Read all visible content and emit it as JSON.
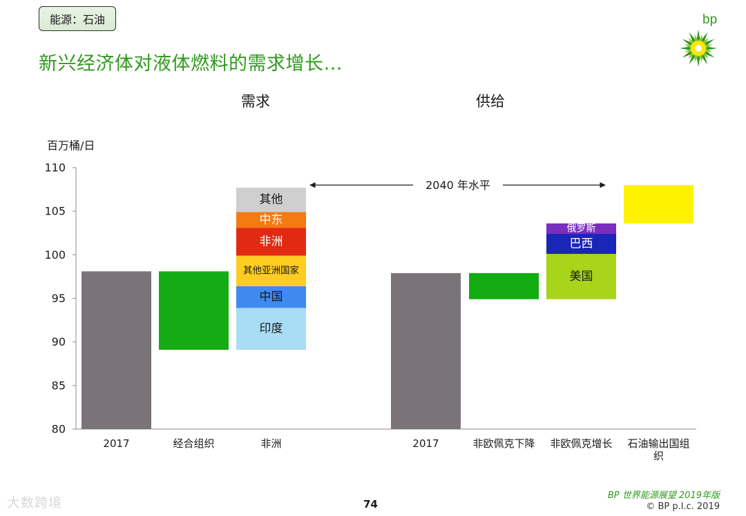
{
  "tag_label": "能源：石油",
  "slide_title": "新兴经济体对液体燃料的需求增长…",
  "logo": {
    "text": "bp",
    "icon": "bp-helios-logo-icon"
  },
  "footer": {
    "brand": "BP 世界能源展望 2019年版",
    "copyright": "© BP p.l.c. 2019",
    "page_number": "74",
    "watermark": "大数跨境"
  },
  "chart_data": {
    "type": "bar",
    "subtype": "waterfall",
    "panel_titles": [
      "需求",
      "供给"
    ],
    "ylabel": "百万桶/日",
    "ylim": [
      80,
      110
    ],
    "yticks": [
      80,
      85,
      90,
      95,
      100,
      105,
      110
    ],
    "annotation": "2040 年水平",
    "colors": {
      "base": "#7a7478",
      "decline": "#13ad13",
      "yellow": "#fff200",
      "russia": "#7a2fbf",
      "brazil": "#1a26b8",
      "usa": "#a8d41a",
      "other": "#cfcfcf",
      "middle_east": "#f47a12",
      "africa": "#e22a12",
      "other_asia": "#ffcc22",
      "china": "#3f8af0",
      "india": "#a9dcf5"
    },
    "categories": [
      "2017",
      "经合组织",
      "非洲",
      "2017",
      "非欧佩克下降",
      "非欧佩克增长",
      "石油输出国组织"
    ],
    "bars": [
      {
        "category": "2017",
        "from": 80,
        "to": 98.1,
        "color_key": "base"
      },
      {
        "category": "经合组织",
        "from": 89.1,
        "to": 98.1,
        "color_key": "decline"
      },
      {
        "category": "非洲",
        "segments": [
          {
            "label": "印度",
            "from": 89.1,
            "to": 93.9,
            "color_key": "india"
          },
          {
            "label": "中国",
            "from": 93.9,
            "to": 96.4,
            "color_key": "china"
          },
          {
            "label": "其他亚洲国家",
            "from": 96.4,
            "to": 99.9,
            "color_key": "other_asia"
          },
          {
            "label": "非洲",
            "from": 99.9,
            "to": 103.1,
            "color_key": "africa"
          },
          {
            "label": "中东",
            "from": 103.1,
            "to": 104.9,
            "color_key": "middle_east"
          },
          {
            "label": "其他",
            "from": 104.9,
            "to": 107.7,
            "color_key": "other"
          }
        ]
      },
      {
        "category": "2017",
        "from": 80,
        "to": 97.9,
        "color_key": "base"
      },
      {
        "category": "非欧佩克下降",
        "from": 94.9,
        "to": 97.9,
        "color_key": "decline"
      },
      {
        "category": "非欧佩克增长",
        "segments": [
          {
            "label": "美国",
            "from": 94.9,
            "to": 100.1,
            "color_key": "usa"
          },
          {
            "label": "巴西",
            "from": 100.1,
            "to": 102.4,
            "color_key": "brazil"
          },
          {
            "label": "俄罗斯",
            "from": 102.4,
            "to": 103.6,
            "color_key": "russia"
          }
        ]
      },
      {
        "category": "石油输出国组织",
        "from": 103.6,
        "to": 108.0,
        "color_key": "yellow"
      }
    ]
  }
}
